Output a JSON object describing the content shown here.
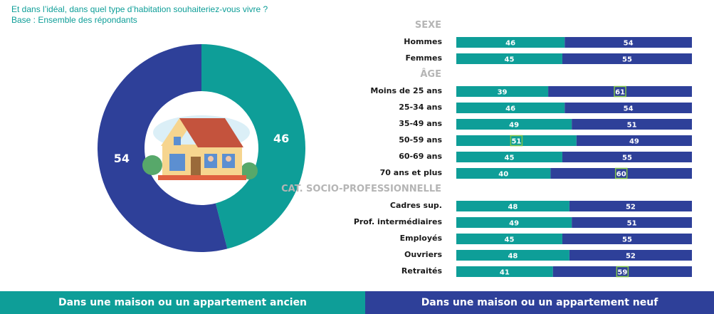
{
  "question": {
    "line1": "Et dans l’idéal, dans quel type d’habitation souhaiteriez-vous vivre ?",
    "line2": "Base : Ensemble des répondants"
  },
  "colors": {
    "ancien": "#0e9e98",
    "neuf": "#2e4099",
    "highlight": "#7fc24a",
    "section": "#b5b5b5",
    "label": "#1a1a1a"
  },
  "legend": {
    "ancien": "Dans une maison ou un appartement ancien",
    "neuf": "Dans une maison ou un appartement neuf"
  },
  "chart_data": [
    {
      "type": "pie",
      "style": "donut",
      "center_icon": "house-illustration",
      "slices": [
        {
          "legend": "Dans une maison ou un appartement ancien",
          "value": 46
        },
        {
          "legend": "Dans une maison ou un appartement neuf",
          "value": 54
        }
      ]
    },
    {
      "type": "bar",
      "orientation": "horizontal",
      "stacked": true,
      "series_order": [
        "Dans une maison ou un appartement ancien",
        "Dans une maison ou un appartement neuf"
      ],
      "groups": [
        {
          "title": "SEXE",
          "rows": [
            {
              "label": "Hommes",
              "values": [
                46,
                54
              ],
              "highlight": [
                false,
                false
              ]
            },
            {
              "label": "Femmes",
              "values": [
                45,
                55
              ],
              "highlight": [
                false,
                false
              ]
            }
          ]
        },
        {
          "title": "ÂGE",
          "rows": [
            {
              "label": "Moins de 25 ans",
              "values": [
                39,
                61
              ],
              "highlight": [
                false,
                true
              ]
            },
            {
              "label": "25-34 ans",
              "values": [
                46,
                54
              ],
              "highlight": [
                false,
                false
              ]
            },
            {
              "label": "35-49 ans",
              "values": [
                49,
                51
              ],
              "highlight": [
                false,
                false
              ]
            },
            {
              "label": "50-59 ans",
              "values": [
                51,
                49
              ],
              "highlight": [
                true,
                false
              ]
            },
            {
              "label": "60-69 ans",
              "values": [
                45,
                55
              ],
              "highlight": [
                false,
                false
              ]
            },
            {
              "label": "70 ans et plus",
              "values": [
                40,
                60
              ],
              "highlight": [
                false,
                true
              ]
            }
          ]
        },
        {
          "title": "CAT. SOCIO-PROFESSIONNELLE",
          "rows": [
            {
              "label": "Cadres sup.",
              "values": [
                48,
                52
              ],
              "highlight": [
                false,
                false
              ]
            },
            {
              "label": "Prof. intermédiaires",
              "values": [
                49,
                51
              ],
              "highlight": [
                false,
                false
              ]
            },
            {
              "label": "Employés",
              "values": [
                45,
                55
              ],
              "highlight": [
                false,
                false
              ]
            },
            {
              "label": "Ouvriers",
              "values": [
                48,
                52
              ],
              "highlight": [
                false,
                false
              ]
            },
            {
              "label": "Retraités",
              "values": [
                41,
                59
              ],
              "highlight": [
                false,
                true
              ]
            }
          ]
        }
      ]
    }
  ]
}
